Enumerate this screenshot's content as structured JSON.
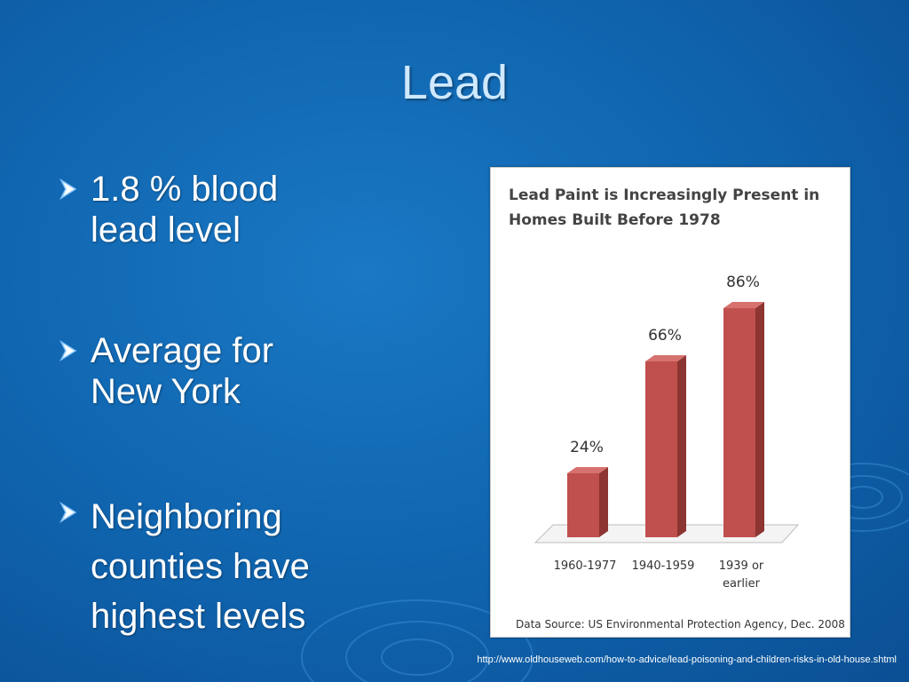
{
  "slide": {
    "title": "Lead",
    "bullets": [
      [
        "1.8 % blood",
        "lead level"
      ],
      [
        "Average for",
        "New York"
      ],
      [
        "Neighboring",
        "counties have",
        "highest levels"
      ]
    ],
    "source_url": "http://www.oldhouseweb.com/how-to-advice/lead-poisoning-and-children-risks-in-old-house.shtml"
  },
  "colors": {
    "bar_front": "#c0504d",
    "bar_side": "#8c3532",
    "bar_top": "#d6716e",
    "title_text": "#cfe9ff"
  },
  "chart_data": {
    "type": "bar",
    "title": [
      "Lead Paint is Increasingly Present in",
      "Homes Built Before 1978"
    ],
    "categories": [
      [
        "1960-1977"
      ],
      [
        "1940-1959"
      ],
      [
        "1939 or",
        "earlier"
      ]
    ],
    "values": [
      24,
      66,
      86
    ],
    "value_labels": [
      "24%",
      "66%",
      "86%"
    ],
    "unit": "%",
    "ylim": [
      0,
      100
    ],
    "grid": false,
    "legend": "none",
    "source": "Data Source: US Environmental Protection Agency, Dec. 2008"
  }
}
